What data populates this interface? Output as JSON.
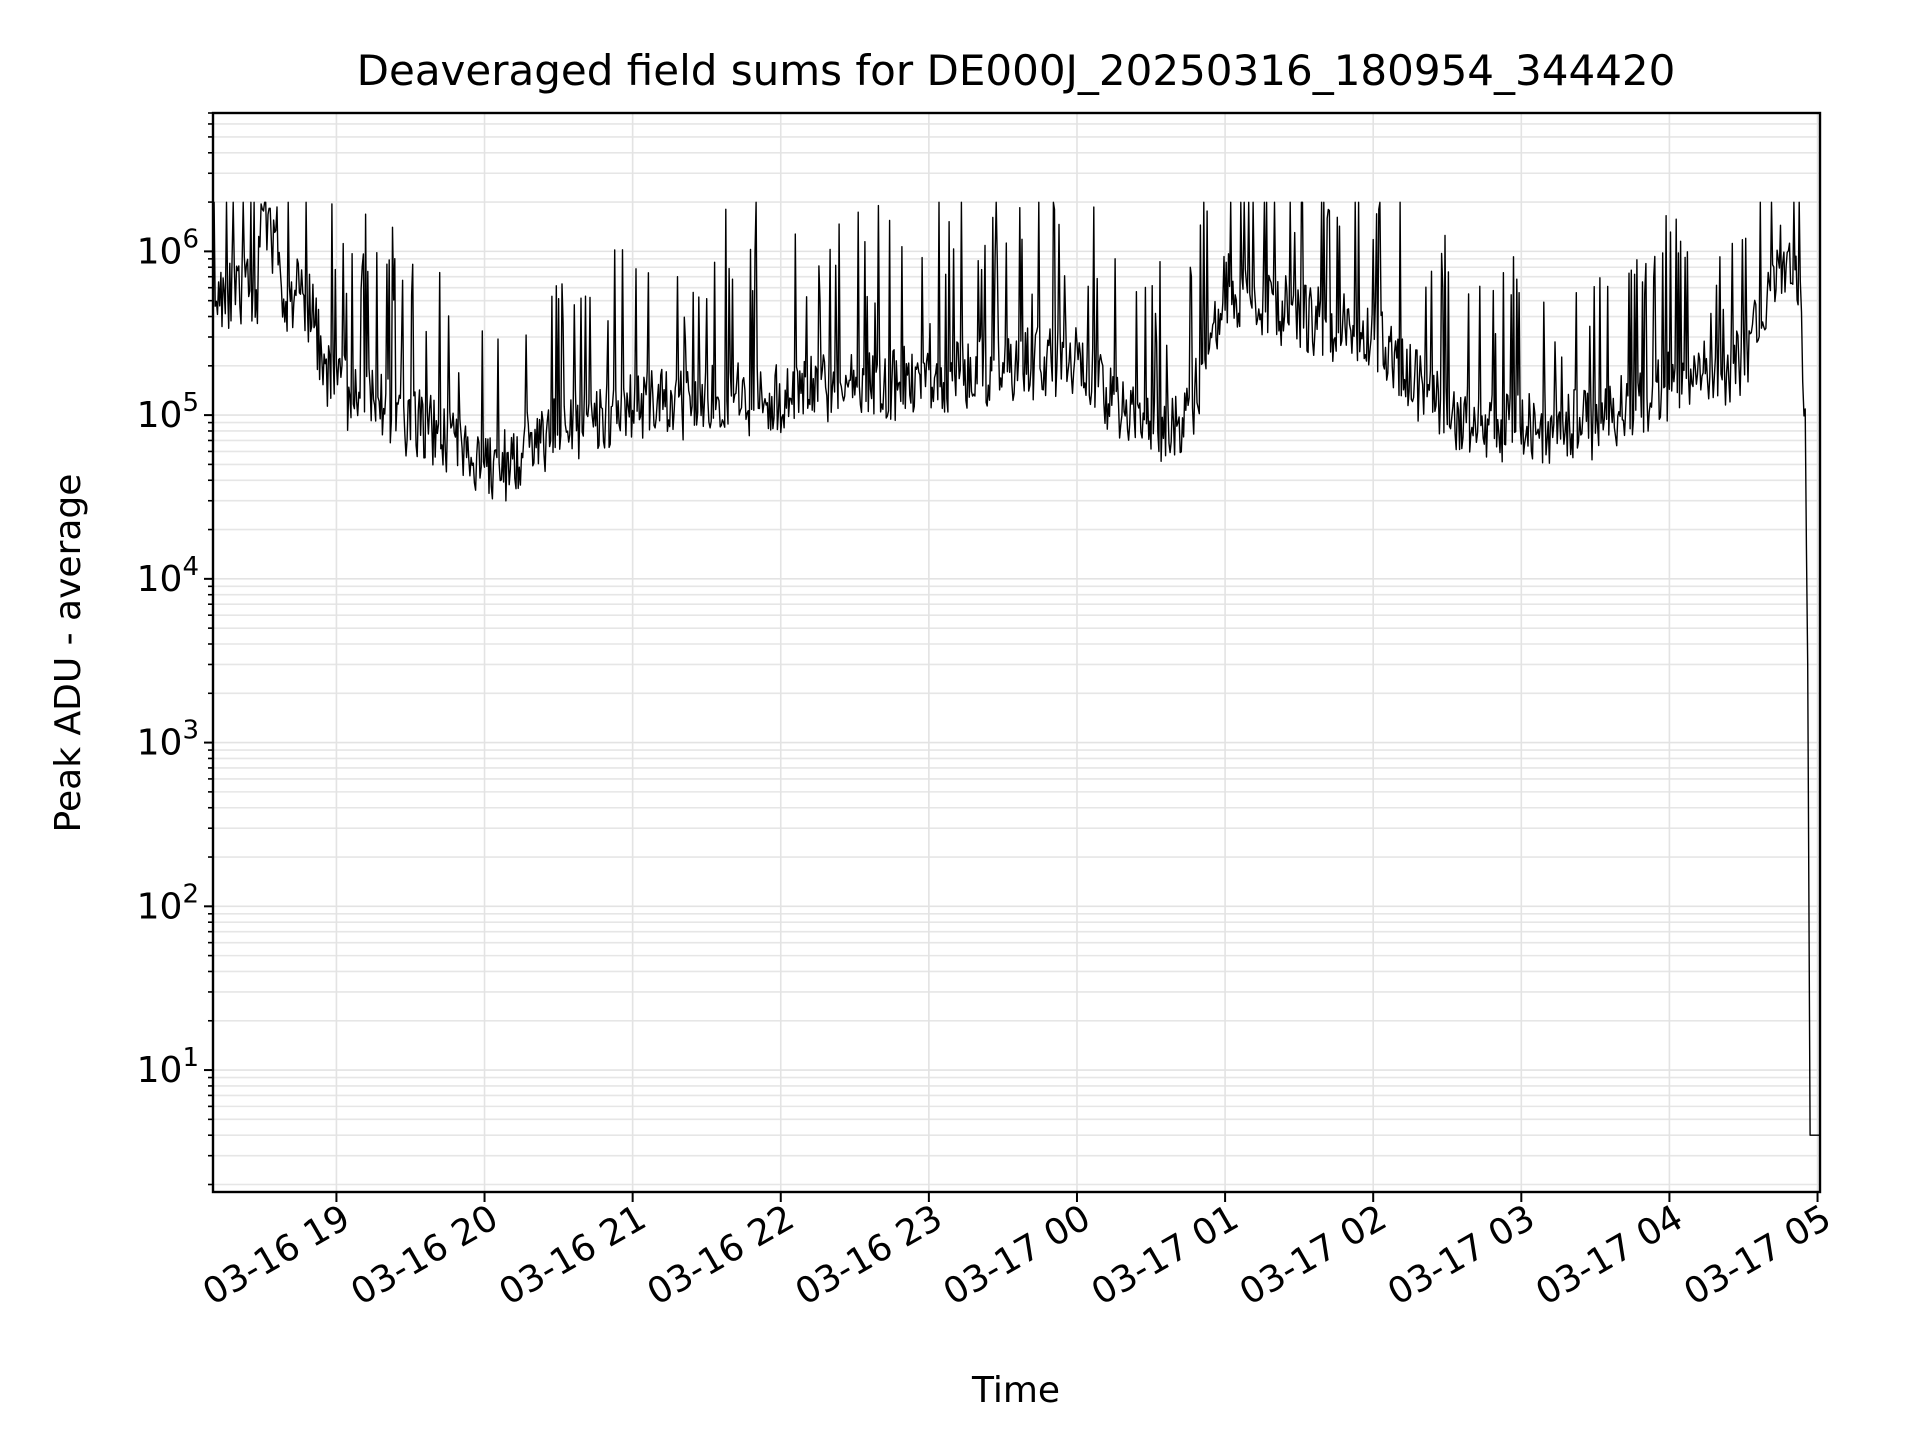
{
  "chart_data": {
    "type": "line",
    "title": "Deaveraged field sums for DE000J_20250316_180954_344420",
    "xlabel": "Time",
    "ylabel": "Peak ADU - average",
    "yscale": "log",
    "ylim": [
      1.8,
      7000000
    ],
    "xlim": [
      "03-16 18:10",
      "03-17 05:01"
    ],
    "grid": "on",
    "x_tick_labels": [
      "03-16 19",
      "03-16 20",
      "03-16 21",
      "03-16 22",
      "03-16 23",
      "03-17 00",
      "03-17 01",
      "03-17 02",
      "03-17 03",
      "03-17 04",
      "03-17 05"
    ],
    "y_ticks": [
      {
        "base": "10",
        "exp": "1",
        "value": 10
      },
      {
        "base": "10",
        "exp": "2",
        "value": 100
      },
      {
        "base": "10",
        "exp": "3",
        "value": 1000
      },
      {
        "base": "10",
        "exp": "4",
        "value": 10000
      },
      {
        "base": "10",
        "exp": "5",
        "value": 100000
      },
      {
        "base": "10",
        "exp": "6",
        "value": 1000000
      }
    ],
    "series": [
      {
        "color": "#000000",
        "x": [
          "03-16 18:10",
          "03-16 18:20",
          "03-16 18:28",
          "03-16 18:30",
          "03-16 18:35",
          "03-16 18:40",
          "03-16 18:45",
          "03-16 18:50",
          "03-16 18:55",
          "03-16 19:00",
          "03-16 19:10",
          "03-16 19:20",
          "03-16 19:30",
          "03-16 19:40",
          "03-16 19:50",
          "03-16 20:00",
          "03-16 20:05",
          "03-16 20:15",
          "03-16 20:30",
          "03-16 20:45",
          "03-16 21:00",
          "03-16 21:30",
          "03-16 22:00",
          "03-16 22:30",
          "03-16 23:00",
          "03-16 23:30",
          "03-17 00:00",
          "03-17 00:15",
          "03-17 00:30",
          "03-17 00:45",
          "03-17 01:00",
          "03-17 01:30",
          "03-17 02:00",
          "03-17 02:30",
          "03-17 03:00",
          "03-17 03:30",
          "03-17 04:00",
          "03-17 04:30",
          "03-17 04:40",
          "03-17 04:45",
          "03-17 04:50",
          "03-17 04:53",
          "03-17 04:55",
          "03-17 04:56",
          "03-17 04:57",
          "03-17 05:01"
        ],
        "y": [
          500000,
          600000,
          550000,
          1800000,
          1000000,
          400000,
          700000,
          400000,
          200000,
          150000,
          120000,
          110000,
          90000,
          80000,
          60000,
          50000,
          45000,
          60000,
          80000,
          100000,
          110000,
          120000,
          130000,
          150000,
          160000,
          200000,
          220000,
          120000,
          80000,
          90000,
          600000,
          400000,
          300000,
          100000,
          80000,
          90000,
          150000,
          200000,
          500000,
          900000,
          850000,
          700000,
          100000,
          3000,
          4,
          4
        ]
      }
    ]
  }
}
